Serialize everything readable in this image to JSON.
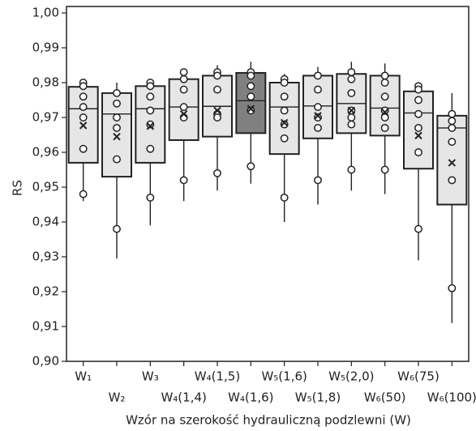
{
  "chart_data": {
    "type": "box",
    "x_label": "Wzór na szerokość hydrauliczną podzlewni (W)",
    "y_label": "RS",
    "categories": [
      "W₁",
      "W₂",
      "W₃",
      "W₄(1,4)",
      "W₄(1,5)",
      "W₄(1,6)",
      "W₅(1,6)",
      "W₅(1,8)",
      "W₅(2,0)",
      "W₆(50)",
      "W₆(75)",
      "W₆(100)"
    ],
    "ylim": [
      0.9,
      1.0
    ],
    "yticks": [
      {
        "value": 0.9,
        "label": "0,90"
      },
      {
        "value": 0.91,
        "label": "0,91"
      },
      {
        "value": 0.92,
        "label": "0,92"
      },
      {
        "value": 0.93,
        "label": "0,93"
      },
      {
        "value": 0.94,
        "label": "0,94"
      },
      {
        "value": 0.95,
        "label": "0,95"
      },
      {
        "value": 0.96,
        "label": "0,96"
      },
      {
        "value": 0.97,
        "label": "0,97"
      },
      {
        "value": 0.98,
        "label": "0,98"
      },
      {
        "value": 0.99,
        "label": "0,99"
      },
      {
        "value": 1.0,
        "label": "1,00"
      }
    ],
    "boxes": [
      {
        "low": 0.946,
        "q1": 0.957,
        "median": 0.9725,
        "q3": 0.9788,
        "high": 0.98,
        "mean": 0.9677,
        "color": "#e6e6e6",
        "points": [
          0.98,
          0.979,
          0.976,
          0.973,
          0.97,
          0.961,
          0.948
        ]
      },
      {
        "low": 0.9295,
        "q1": 0.953,
        "median": 0.971,
        "q3": 0.977,
        "high": 0.98,
        "mean": 0.9645,
        "color": "#e6e6e6",
        "points": [
          0.977,
          0.974,
          0.97,
          0.967,
          0.958,
          0.938
        ]
      },
      {
        "low": 0.939,
        "q1": 0.957,
        "median": 0.9725,
        "q3": 0.979,
        "high": 0.98,
        "mean": 0.9675,
        "color": "#e6e6e6",
        "points": [
          0.98,
          0.979,
          0.976,
          0.972,
          0.968,
          0.961,
          0.947
        ]
      },
      {
        "low": 0.946,
        "q1": 0.9635,
        "median": 0.973,
        "q3": 0.981,
        "high": 0.984,
        "mean": 0.971,
        "color": "#e6e6e6",
        "points": [
          0.983,
          0.981,
          0.978,
          0.973,
          0.97,
          0.952
        ]
      },
      {
        "low": 0.949,
        "q1": 0.9645,
        "median": 0.9732,
        "q3": 0.982,
        "high": 0.985,
        "mean": 0.972,
        "color": "#e6e6e6",
        "points": [
          0.983,
          0.982,
          0.978,
          0.971,
          0.97,
          0.954
        ]
      },
      {
        "low": 0.951,
        "q1": 0.9655,
        "median": 0.9748,
        "q3": 0.9828,
        "high": 0.986,
        "mean": 0.9725,
        "color": "#808080",
        "points": [
          0.983,
          0.982,
          0.979,
          0.976,
          0.972,
          0.956
        ]
      },
      {
        "low": 0.94,
        "q1": 0.9595,
        "median": 0.973,
        "q3": 0.98,
        "high": 0.9825,
        "mean": 0.9685,
        "color": "#e6e6e6",
        "points": [
          0.981,
          0.98,
          0.976,
          0.972,
          0.968,
          0.964,
          0.947
        ]
      },
      {
        "low": 0.945,
        "q1": 0.964,
        "median": 0.9733,
        "q3": 0.982,
        "high": 0.9845,
        "mean": 0.9705,
        "color": "#e6e6e6",
        "points": [
          0.982,
          0.978,
          0.973,
          0.97,
          0.967,
          0.952
        ]
      },
      {
        "low": 0.949,
        "q1": 0.9655,
        "median": 0.974,
        "q3": 0.9825,
        "high": 0.986,
        "mean": 0.972,
        "color": "#e6e6e6",
        "points": [
          0.983,
          0.981,
          0.977,
          0.972,
          0.97,
          0.968,
          0.955
        ]
      },
      {
        "low": 0.948,
        "q1": 0.9648,
        "median": 0.9727,
        "q3": 0.982,
        "high": 0.9855,
        "mean": 0.9715,
        "color": "#e6e6e6",
        "points": [
          0.982,
          0.98,
          0.976,
          0.972,
          0.97,
          0.967,
          0.955
        ]
      },
      {
        "low": 0.929,
        "q1": 0.9553,
        "median": 0.9713,
        "q3": 0.9775,
        "high": 0.9795,
        "mean": 0.9648,
        "color": "#e6e6e6",
        "points": [
          0.979,
          0.978,
          0.975,
          0.971,
          0.967,
          0.96,
          0.938
        ]
      },
      {
        "low": 0.911,
        "q1": 0.945,
        "median": 0.967,
        "q3": 0.9705,
        "high": 0.977,
        "mean": 0.957,
        "color": "#e6e6e6",
        "points": [
          0.971,
          0.969,
          0.967,
          0.963,
          0.952,
          0.921
        ]
      }
    ]
  }
}
